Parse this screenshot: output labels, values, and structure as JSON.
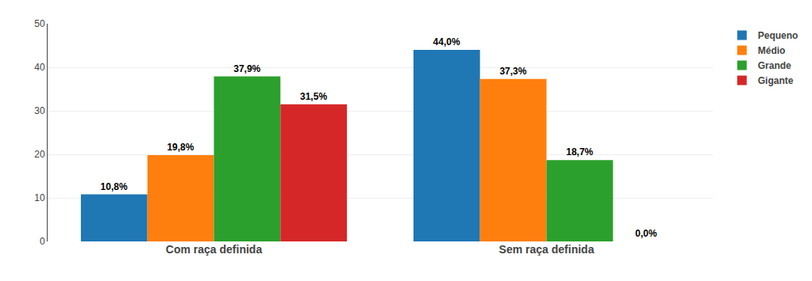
{
  "chart_data": {
    "type": "bar",
    "categories": [
      "Com raça definida",
      "Sem raça definida"
    ],
    "series": [
      {
        "name": "Pequeno",
        "values": [
          10.8,
          44.0
        ],
        "value_labels": [
          "10,8%",
          "44,0%"
        ]
      },
      {
        "name": "Médio",
        "values": [
          19.8,
          37.3
        ],
        "value_labels": [
          "19,8%",
          "37,3%"
        ]
      },
      {
        "name": "Grande",
        "values": [
          37.9,
          18.7
        ],
        "value_labels": [
          "37,9%",
          "18,7%"
        ]
      },
      {
        "name": "Gigante",
        "values": [
          31.5,
          0.0
        ],
        "value_labels": [
          "31,5%",
          "0,0%"
        ]
      }
    ],
    "ylim": [
      0,
      50
    ],
    "yticks": [
      0,
      10,
      20,
      30,
      40,
      50
    ],
    "grid": true,
    "legend": "upper right",
    "data_labels": true
  }
}
